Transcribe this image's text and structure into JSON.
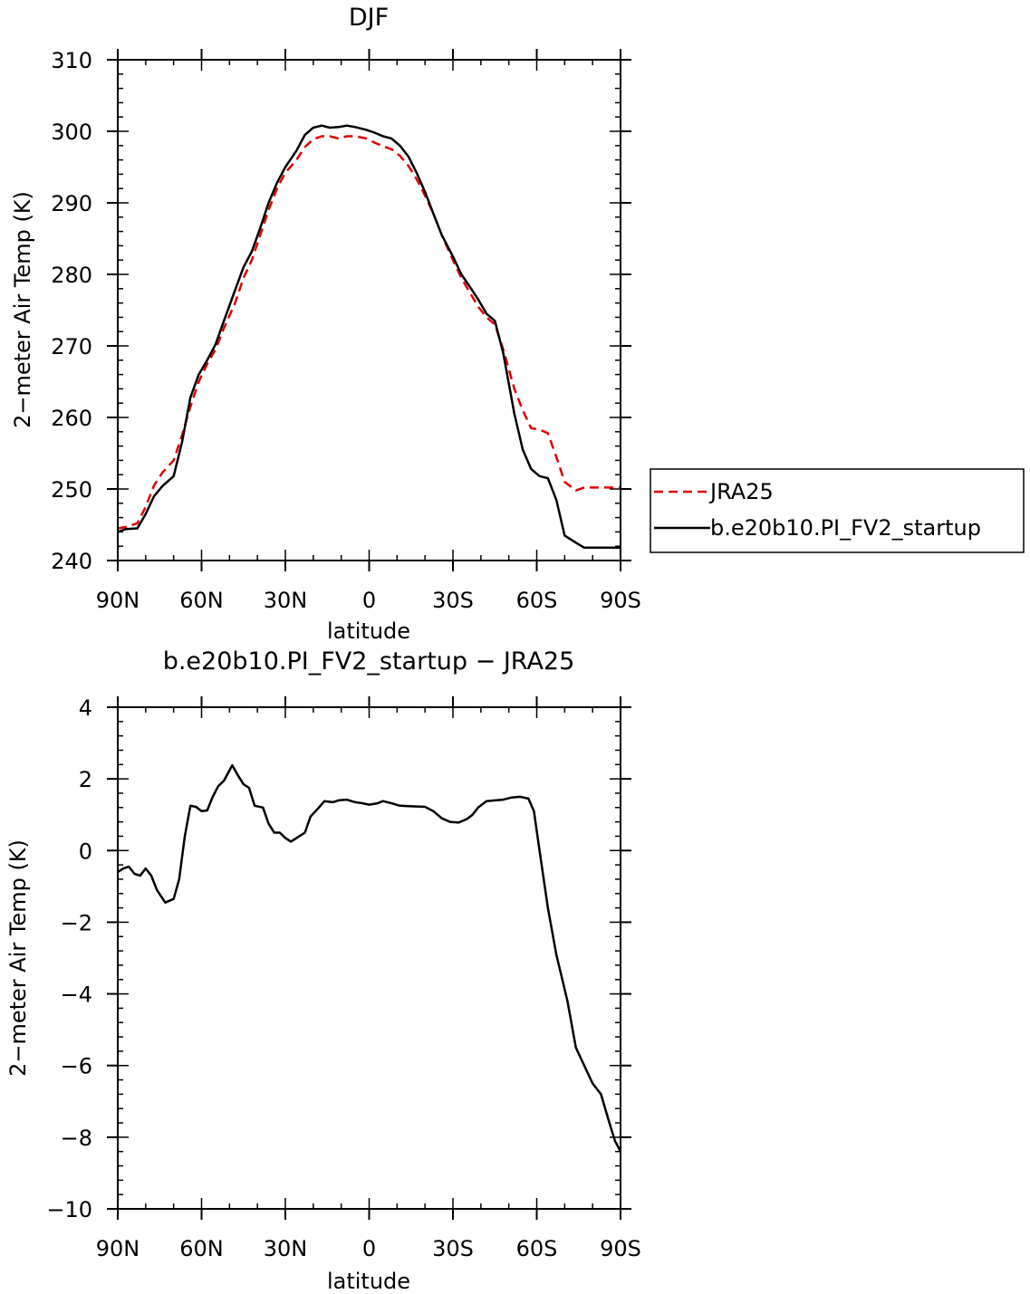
{
  "chart_data": [
    {
      "type": "line",
      "title": "DJF",
      "xlabel": "latitude",
      "ylabel": "2−meter Air Temp (K)",
      "xlim": [
        90,
        -90
      ],
      "ylim": [
        240,
        310
      ],
      "x_ticks": [
        90,
        60,
        30,
        0,
        -30,
        -60,
        -90
      ],
      "x_tick_labels": [
        "90N",
        "60N",
        "30N",
        "0",
        "30S",
        "60S",
        "90S"
      ],
      "y_ticks": [
        240,
        250,
        260,
        270,
        280,
        290,
        300,
        310
      ],
      "y_tick_labels": [
        "240",
        "250",
        "260",
        "270",
        "280",
        "290",
        "300",
        "310"
      ],
      "x": [
        90,
        87,
        83,
        80,
        77,
        74,
        70,
        67,
        64,
        61,
        58,
        55,
        52,
        48,
        45,
        42,
        39,
        36,
        33,
        30,
        26,
        23,
        20,
        17,
        14,
        11,
        8,
        5,
        1,
        -2,
        -5,
        -8,
        -11,
        -14,
        -17,
        -20,
        -23,
        -26,
        -30,
        -33,
        -36,
        -39,
        -42,
        -45,
        -48,
        -52,
        -55,
        -58,
        -61,
        -64,
        -67,
        -70,
        -74,
        -77,
        -80,
        -83,
        -86,
        -88,
        -90
      ],
      "series": [
        {
          "name": "JRA25",
          "color": "#e00000",
          "dash": true,
          "values": [
            244.5,
            244.7,
            245.2,
            247.5,
            250.5,
            252.3,
            254.0,
            257.5,
            261.5,
            265.0,
            267.5,
            269.5,
            272.5,
            276.0,
            279.5,
            282.0,
            285.5,
            289.0,
            292.0,
            294.2,
            296.0,
            297.8,
            298.9,
            299.3,
            299.3,
            299.0,
            299.3,
            299.3,
            299.0,
            298.4,
            297.9,
            297.5,
            296.6,
            295.2,
            293.3,
            291.0,
            288.5,
            285.5,
            282.0,
            279.5,
            277.5,
            275.5,
            274.0,
            273.0,
            269.5,
            264.0,
            261.0,
            258.5,
            258.3,
            257.8,
            254.5,
            251.0,
            249.8,
            250.2,
            250.2,
            250.2,
            250.2,
            250.2,
            250.2
          ],
          "note_values_exclusive": true
        },
        {
          "name": "b.e20b10.PI_FV2_startup",
          "color": "#000000",
          "dash": false,
          "values": [
            244.0,
            244.4,
            244.5,
            246.5,
            249.0,
            250.4,
            251.8,
            256.5,
            262.8,
            266.0,
            268.0,
            270.2,
            273.5,
            277.8,
            281.0,
            283.2,
            286.5,
            290.0,
            292.8,
            295.0,
            297.3,
            299.5,
            300.5,
            300.8,
            300.5,
            300.6,
            300.8,
            300.6,
            300.2,
            299.8,
            299.3,
            299.0,
            298.0,
            296.5,
            294.2,
            291.5,
            288.5,
            285.5,
            282.5,
            280.0,
            278.3,
            276.5,
            274.5,
            273.5,
            269.0,
            260.5,
            255.5,
            252.8,
            251.8,
            251.5,
            248.5,
            243.5,
            242.5,
            241.8,
            241.8,
            241.8,
            241.8,
            241.8,
            241.8
          ]
        }
      ],
      "legend": [
        "JRA25",
        "b.e20b10.PI_FV2_startup"
      ],
      "legend_placement": "right"
    },
    {
      "type": "line",
      "title": "b.e20b10.PI_FV2_startup − JRA25",
      "xlabel": "latitude",
      "ylabel": "2−meter Air Temp (K)",
      "xlim": [
        90,
        -90
      ],
      "ylim": [
        -10,
        4
      ],
      "x_ticks": [
        90,
        60,
        30,
        0,
        -30,
        -60,
        -90
      ],
      "x_tick_labels": [
        "90N",
        "60N",
        "30N",
        "0",
        "30S",
        "60S",
        "90S"
      ],
      "y_ticks": [
        -10,
        -8,
        -6,
        -4,
        -2,
        0,
        2,
        4
      ],
      "y_tick_labels": [
        "−10",
        "−8",
        "−6",
        "−4",
        "−2",
        "0",
        "2",
        "4"
      ],
      "x": [
        90,
        88,
        86,
        84,
        82,
        80,
        78,
        76,
        73,
        70,
        68,
        66,
        64,
        62,
        60,
        58,
        56,
        54,
        52,
        49,
        47,
        45,
        43,
        41,
        38,
        36,
        34,
        32,
        30,
        28,
        26,
        23,
        21,
        18,
        16,
        13,
        11,
        8,
        5,
        3,
        0,
        -3,
        -5,
        -8,
        -11,
        -14,
        -17,
        -20,
        -23,
        -26,
        -29,
        -32,
        -35,
        -37,
        -39,
        -42,
        -45,
        -48,
        -51,
        -54,
        -57,
        -59,
        -61,
        -64,
        -67,
        -71,
        -74,
        -77,
        -80,
        -83,
        -86,
        -88,
        -90
      ],
      "series": [
        {
          "name": "b.e20b10.PI_FV2_startup − JRA25",
          "color": "#000000",
          "dash": false,
          "values": [
            -0.6,
            -0.5,
            -0.45,
            -0.65,
            -0.7,
            -0.5,
            -0.7,
            -1.1,
            -1.45,
            -1.35,
            -0.8,
            0.4,
            1.25,
            1.22,
            1.1,
            1.12,
            1.5,
            1.8,
            1.95,
            2.38,
            2.1,
            1.85,
            1.75,
            1.25,
            1.2,
            0.75,
            0.5,
            0.5,
            0.35,
            0.25,
            0.35,
            0.5,
            0.95,
            1.2,
            1.38,
            1.35,
            1.4,
            1.42,
            1.35,
            1.33,
            1.28,
            1.32,
            1.38,
            1.32,
            1.25,
            1.24,
            1.23,
            1.22,
            1.1,
            0.9,
            0.8,
            0.78,
            0.88,
            1.0,
            1.2,
            1.38,
            1.4,
            1.42,
            1.48,
            1.5,
            1.45,
            1.1,
            0.0,
            -1.6,
            -2.9,
            -4.2,
            -5.5,
            -6.0,
            -6.5,
            -6.8,
            -7.6,
            -8.1,
            -8.4
          ]
        }
      ],
      "legend": [],
      "legend_placement": "none"
    }
  ]
}
